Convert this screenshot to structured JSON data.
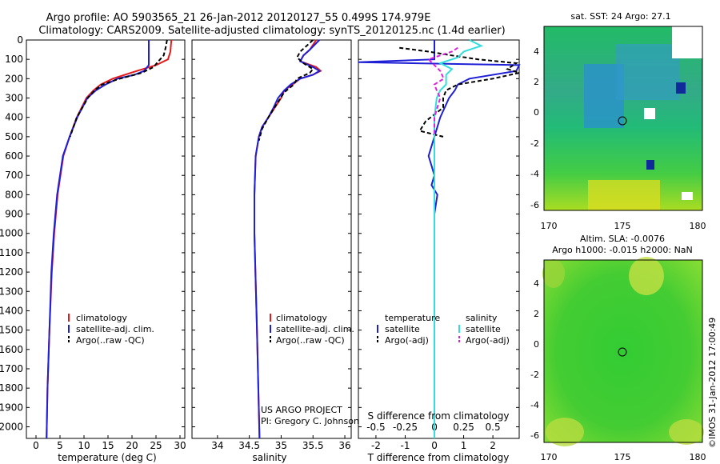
{
  "header": {
    "title_line1": "Argo profile: AO 5903565_21 26-Jan-2012 20120127_55 0.499S 174.979E",
    "title_line2": "Climatology: CARS2009. Satellite-adjusted climatology: synTS_20120125.nc (1.4d earlier)"
  },
  "colors": {
    "climatology": "#e41a1c",
    "satellite": "#1f1fd6",
    "argo": "#000000",
    "sal_sat": "#33dddd",
    "sal_argo": "#dd22dd"
  },
  "chart_data": [
    {
      "type": "line",
      "id": "temperature",
      "xlabel": "temperature (deg C)",
      "xlim": [
        -2,
        31
      ],
      "xticks": [
        0,
        5,
        10,
        15,
        20,
        25,
        30
      ],
      "ylim": [
        0,
        2060
      ],
      "yticks": [
        0,
        100,
        200,
        300,
        400,
        500,
        600,
        700,
        800,
        900,
        1000,
        1100,
        1200,
        1300,
        1400,
        1500,
        1600,
        1700,
        1800,
        1900,
        2000
      ],
      "legend": [
        "climatology",
        "satellite-adj. clim.",
        "Argo(..raw -QC)"
      ],
      "series": [
        {
          "name": "climatology",
          "depth": [
            0,
            60,
            100,
            130,
            160,
            180,
            200,
            230,
            260,
            300,
            400,
            500,
            600,
            800,
            1000,
            1200,
            1500,
            1800,
            2060
          ],
          "values": [
            28.2,
            28.0,
            27.5,
            25.0,
            21.0,
            18.5,
            16.0,
            13.5,
            12.0,
            10.5,
            8.5,
            7.0,
            5.7,
            4.5,
            3.8,
            3.3,
            2.8,
            2.4,
            2.2
          ]
        },
        {
          "name": "satellite-adj. clim.",
          "depth": [
            0,
            100,
            130,
            160,
            180,
            200,
            230,
            260,
            300,
            400,
            500,
            600,
            800,
            1000,
            1200,
            1500,
            1800,
            2060
          ],
          "values": [
            23.5,
            23.5,
            23.5,
            22.5,
            20.5,
            17.0,
            14.5,
            12.5,
            10.7,
            8.6,
            7.0,
            5.6,
            4.4,
            3.7,
            3.2,
            2.8,
            2.4,
            2.2
          ]
        },
        {
          "name": "Argo(..raw -QC)",
          "depth": [
            0,
            40,
            80,
            110,
            140,
            170,
            200,
            230,
            260,
            300,
            400,
            500
          ],
          "values": [
            27.3,
            27.0,
            26.6,
            25.5,
            24.5,
            22.0,
            17.5,
            13.8,
            12.2,
            10.8,
            8.5,
            7.1
          ]
        }
      ]
    },
    {
      "type": "line",
      "id": "salinity",
      "xlabel": "salinity",
      "xlim": [
        33.6,
        36.1
      ],
      "xticks": [
        34,
        34.5,
        35,
        35.5,
        36
      ],
      "ylim": [
        0,
        2060
      ],
      "legend": [
        "climatology",
        "satellite-adj. clim.",
        "Argo(..raw -QC)"
      ],
      "series": [
        {
          "name": "climatology",
          "depth": [
            0,
            50,
            80,
            110,
            140,
            160,
            180,
            200,
            230,
            260,
            300,
            350,
            400,
            450,
            500,
            600,
            800,
            1000,
            1500,
            2060
          ],
          "values": [
            35.55,
            35.45,
            35.35,
            35.3,
            35.55,
            35.62,
            35.5,
            35.3,
            35.18,
            35.05,
            35.0,
            34.9,
            34.8,
            34.7,
            34.65,
            34.6,
            34.58,
            34.58,
            34.62,
            34.66
          ]
        },
        {
          "name": "satellite-adj. clim.",
          "depth": [
            0,
            50,
            80,
            110,
            140,
            160,
            180,
            200,
            230,
            260,
            300,
            350,
            400,
            450,
            500,
            600,
            800,
            1000,
            1500,
            2060
          ],
          "values": [
            35.6,
            35.45,
            35.35,
            35.3,
            35.5,
            35.6,
            35.5,
            35.3,
            35.15,
            35.05,
            34.95,
            34.88,
            34.8,
            34.7,
            34.65,
            34.6,
            34.58,
            34.58,
            34.62,
            34.66
          ]
        },
        {
          "name": "Argo(..raw -QC)",
          "depth": [
            0,
            30,
            60,
            90,
            120,
            150,
            170,
            200,
            230,
            270,
            320,
            400,
            460,
            520
          ],
          "values": [
            35.5,
            35.4,
            35.3,
            35.25,
            35.35,
            35.5,
            35.45,
            35.25,
            35.2,
            35.05,
            34.95,
            34.8,
            34.7,
            34.65
          ]
        }
      ]
    },
    {
      "type": "line",
      "id": "differences",
      "xlabel": "T difference from climatology",
      "xlabel_top": "S difference from climatology",
      "xlim": [
        -2.6,
        2.9
      ],
      "xticks": [
        -2,
        -1,
        0,
        1,
        2
      ],
      "xticks_s": [
        "-0.5",
        "-0.25",
        "0",
        "0.25",
        "0.5"
      ],
      "ylim": [
        0,
        2060
      ],
      "legend": {
        "temperature": [
          "satellite",
          "Argo(-adj)"
        ],
        "salinity": [
          "satellite",
          "Argo(-adj)"
        ]
      },
      "legend_headers": [
        "temperature",
        "salinity"
      ],
      "series": [
        {
          "name": "temperature satellite",
          "depth": [
            0,
            100,
            115,
            130,
            160,
            200,
            230,
            260,
            300,
            400,
            500,
            600,
            650,
            700,
            750,
            800,
            900,
            1000,
            1200,
            1500,
            2060
          ],
          "values": [
            0,
            0,
            -2.6,
            2.9,
            2.8,
            1.2,
            0.8,
            0.7,
            0.5,
            0.2,
            0,
            -0.2,
            -0.1,
            0,
            -0.1,
            0.1,
            0,
            0,
            0,
            0,
            0
          ]
        },
        {
          "name": "temperature Argo(-adj)",
          "depth": [
            40,
            60,
            80,
            100,
            120,
            150,
            170,
            200,
            230,
            260,
            300,
            350,
            420,
            470,
            500
          ],
          "values": [
            -1.2,
            -0.2,
            0.6,
            1.5,
            2.8,
            2.5,
            2.9,
            2.0,
            0.8,
            0.4,
            0.3,
            0.3,
            -0.3,
            -0.5,
            0.3
          ]
        },
        {
          "name": "salinity satellite",
          "depth": [
            0,
            30,
            60,
            90,
            120,
            150,
            180,
            200,
            230,
            260,
            300,
            400,
            500,
            600,
            800,
            1000,
            1500,
            2060
          ],
          "values": [
            0.3,
            0.4,
            0.25,
            0.2,
            0.05,
            0.15,
            0.1,
            0.1,
            0.1,
            0.05,
            0.02,
            0,
            0,
            0,
            0,
            0,
            0,
            0
          ]
        },
        {
          "name": "salinity Argo(-adj)",
          "depth": [
            40,
            60,
            80,
            100,
            130,
            160,
            200,
            230,
            260,
            300,
            400,
            500
          ],
          "values": [
            0.2,
            0.15,
            0.05,
            -0.05,
            0,
            0.05,
            0.08,
            0,
            0.02,
            0.05,
            0,
            0
          ]
        }
      ]
    }
  ],
  "maps": {
    "sst": {
      "title": "sat. SST: 24 Argo: 27.1",
      "xticks": [
        "170",
        "175",
        "180"
      ],
      "yticks": [
        "4",
        "2",
        "0",
        "-2",
        "-4",
        "-6"
      ]
    },
    "sla": {
      "title_line1": "Altim. SLA: -0.0076",
      "title_line2": "Argo h1000: -0.015 h2000: NaN",
      "xticks": [
        "170",
        "175",
        "180"
      ],
      "yticks": [
        "4",
        "2",
        "0",
        "-2",
        "-4",
        "-6"
      ]
    }
  },
  "credits": {
    "project": "US ARGO PROJECT",
    "pi": "PI: Gregory C. Johnson",
    "imos": "©IMOS 31-Jan-2012 17:00:49"
  }
}
